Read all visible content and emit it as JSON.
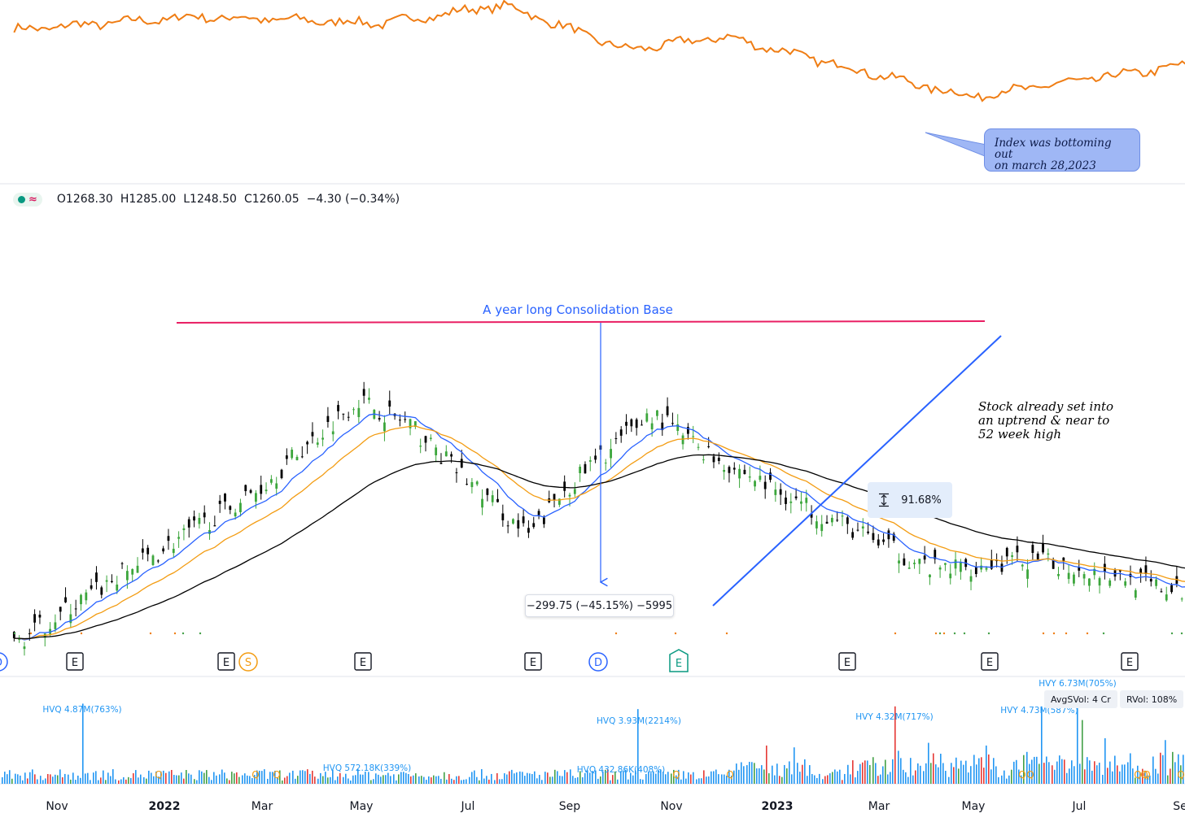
{
  "ohlc": {
    "open": "O1268.30",
    "high": "H1285.00",
    "low": "L1248.50",
    "close": "C1260.05",
    "change": "−4.30 (−0.34%)"
  },
  "annotations": {
    "consolidation_label": "A year long Consolidation Base",
    "index_note": [
      "Index was bottoming out",
      "on march 28,2023"
    ],
    "stock_note": [
      "Stock already set into",
      "an uptrend & near to",
      "52 week high"
    ],
    "measure_down": "−299.75 (−45.15%) −5995",
    "measure_up": "91.68%"
  },
  "volume_badges": {
    "avg": "AvgSVol: 4 Cr",
    "rvol": "RVol: 108%"
  },
  "colors": {
    "index_line": "#ef7d14",
    "resistance": "#e91e63",
    "trendline": "#2962ff",
    "ema_fast": "#2962ff",
    "ema_mid": "#f39c12",
    "ema_slow": "#000000",
    "up": "#3ca63c",
    "down": "#000000",
    "vol_blue": "#2196f3",
    "vol_red": "#e53935",
    "vol_green": "#43a047"
  },
  "chart_data": [
    {
      "type": "line",
      "series": [
        {
          "values_shape": [
            [
              2021.8,
              0.82
            ],
            [
              2021.95,
              0.9
            ],
            [
              2022.1,
              0.86
            ],
            [
              2022.2,
              0.97
            ],
            [
              2022.3,
              0.7
            ],
            [
              2022.38,
              0.78
            ],
            [
              2022.5,
              0.56
            ],
            [
              2022.58,
              0.42
            ],
            [
              2022.75,
              0.6
            ],
            [
              2022.85,
              0.68
            ],
            [
              2022.97,
              0.73
            ],
            [
              2023.07,
              0.72
            ],
            [
              2023.2,
              0.7
            ],
            [
              2023.3,
              0.7
            ],
            [
              2023.4,
              0.78
            ],
            [
              2023.5,
              0.84
            ],
            [
              2023.6,
              0.93
            ],
            [
              2023.7,
              1.0
            ]
          ]
        }
      ]
    },
    {
      "type": "candlestick",
      "x_ticks": [
        "Nov",
        "2022",
        "Mar",
        "May",
        "Jul",
        "Sep",
        "Nov",
        "2023",
        "Mar",
        "May",
        "Jul",
        "Se"
      ],
      "close_path": [
        [
          2021.78,
          500
        ],
        [
          2021.9,
          700
        ],
        [
          2022.0,
          860
        ],
        [
          2022.08,
          1050
        ],
        [
          2022.12,
          1000
        ],
        [
          2022.17,
          880
        ],
        [
          2022.22,
          760
        ],
        [
          2022.25,
          860
        ],
        [
          2022.32,
          1020
        ],
        [
          2022.37,
          930
        ],
        [
          2022.45,
          820
        ],
        [
          2022.55,
          690
        ],
        [
          2022.63,
          710
        ],
        [
          2022.7,
          680
        ],
        [
          2022.75,
          640
        ],
        [
          2022.8,
          700
        ],
        [
          2022.88,
          700
        ],
        [
          2022.96,
          720
        ],
        [
          2023.02,
          910
        ],
        [
          2023.07,
          930
        ],
        [
          2023.12,
          860
        ],
        [
          2023.17,
          990
        ],
        [
          2023.22,
          1080
        ],
        [
          2023.27,
          1250
        ],
        [
          2023.33,
          1360
        ],
        [
          2023.38,
          1230
        ],
        [
          2023.45,
          1300
        ]
      ],
      "resistance_level": 1110,
      "measured_move": {
        "change": -299.75,
        "percent": -45.15,
        "bars": -5995
      },
      "range_percent": 91.68,
      "event_markers": [
        "E",
        "E",
        "S",
        "E",
        "E",
        "D",
        "E",
        "E",
        "E",
        "E"
      ]
    },
    {
      "type": "bar",
      "name": "volume",
      "labels": [
        "HVQ 4.87M(763%)",
        "HVQ 572.18K(339%)",
        "HVQ 3.93M(2214%)",
        "HVQ 432.86K(408%)",
        "HVY 4.32M(717%)",
        "HVY 4.73M(587%)",
        "HVY 6.73M(705%)"
      ]
    }
  ]
}
